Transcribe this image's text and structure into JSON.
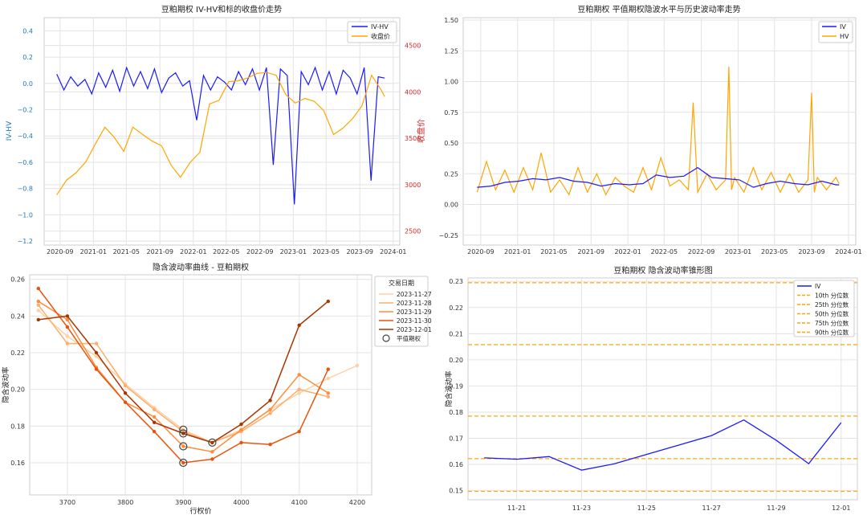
{
  "chart_data": [
    {
      "type": "line",
      "title": "豆粕期权 IV-HV和标的收盘价走势",
      "xlabel": "",
      "ylabel": "IV-HV",
      "y2label": "收盘价",
      "x_ticks": [
        "2020-09",
        "2021-01",
        "2021-05",
        "2021-09",
        "2022-01",
        "2022-05",
        "2022-09",
        "2023-01",
        "2023-05",
        "2023-09",
        "2024-01"
      ],
      "y_ticks": [
        "0.4",
        "0.2",
        "0.0",
        "−0.2",
        "−0.4",
        "−0.6",
        "−0.8",
        "−1.0",
        "−1.2"
      ],
      "y2_ticks": [
        "4500",
        "4000",
        "3500",
        "3000",
        "2500"
      ],
      "ylim": [
        -1.23,
        0.5
      ],
      "y2lim": [
        2350,
        4800
      ],
      "xlim": [
        "2020-07-05",
        "2024-01-25"
      ],
      "grid": true,
      "legend_position": "top-right",
      "series": [
        {
          "name": "IV-HV",
          "color": "#1a1aff",
          "axis": "left",
          "x": [
            "2020-08-20",
            "2020-09-15",
            "2020-10-10",
            "2020-11-05",
            "2020-12-01",
            "2020-12-26",
            "2021-01-20",
            "2021-02-15",
            "2021-03-12",
            "2021-04-07",
            "2021-05-02",
            "2021-05-28",
            "2021-06-22",
            "2021-07-18",
            "2021-08-12",
            "2021-09-07",
            "2021-10-03",
            "2021-10-28",
            "2021-11-23",
            "2021-12-18",
            "2022-01-13",
            "2022-02-07",
            "2022-03-05",
            "2022-03-30",
            "2022-04-25",
            "2022-05-20",
            "2022-06-15",
            "2022-07-10",
            "2022-08-05",
            "2022-08-30",
            "2022-09-25",
            "2022-10-20",
            "2022-11-15",
            "2022-12-10",
            "2023-01-05",
            "2023-01-30",
            "2023-02-25",
            "2023-03-22",
            "2023-04-17",
            "2023-05-12",
            "2023-06-07",
            "2023-07-02",
            "2023-07-28",
            "2023-08-22",
            "2023-09-17",
            "2023-10-12",
            "2023-11-07",
            "2023-12-01"
          ],
          "y": [
            0.07,
            -0.05,
            0.05,
            -0.02,
            0.03,
            -0.08,
            0.08,
            -0.03,
            0.1,
            -0.06,
            0.12,
            -0.02,
            0.09,
            -0.04,
            0.11,
            -0.07,
            0.04,
            0.08,
            -0.02,
            0.02,
            -0.28,
            0.06,
            -0.05,
            0.05,
            0.01,
            -0.05,
            0.09,
            -0.01,
            0.11,
            -0.05,
            0.12,
            -0.62,
            0.11,
            0.06,
            -0.92,
            0.09,
            -0.01,
            0.12,
            -0.05,
            0.09,
            -0.08,
            0.1,
            0.04,
            -0.08,
            0.12,
            -0.74,
            0.05,
            0.04
          ]
        },
        {
          "name": "收盘价",
          "color": "#ffa500",
          "axis": "right",
          "x": [
            "2020-08-20",
            "2020-09-25",
            "2020-10-30",
            "2020-12-05",
            "2021-01-08",
            "2021-02-12",
            "2021-03-18",
            "2021-04-22",
            "2021-05-25",
            "2021-06-30",
            "2021-08-03",
            "2021-09-07",
            "2021-10-12",
            "2021-11-15",
            "2021-12-20",
            "2022-01-25",
            "2022-03-01",
            "2022-04-05",
            "2022-05-10",
            "2022-06-14",
            "2022-07-18",
            "2022-08-22",
            "2022-09-26",
            "2022-10-30",
            "2022-12-05",
            "2023-01-08",
            "2023-02-12",
            "2023-03-18",
            "2023-04-22",
            "2023-05-28",
            "2023-07-01",
            "2023-08-05",
            "2023-09-09",
            "2023-10-14",
            "2023-11-18",
            "2023-12-01"
          ],
          "y": [
            2890,
            3050,
            3130,
            3250,
            3440,
            3620,
            3510,
            3360,
            3620,
            3540,
            3470,
            3420,
            3210,
            3080,
            3240,
            3350,
            3870,
            3910,
            4110,
            4120,
            4150,
            4200,
            4210,
            4180,
            3970,
            3880,
            3930,
            3900,
            3800,
            3540,
            3610,
            3710,
            3850,
            4180,
            4020,
            3950
          ]
        }
      ]
    },
    {
      "type": "line",
      "title": "豆粕期权 平值期权隐波水平与历史波动率走势",
      "xlabel": "",
      "ylabel": "",
      "x_ticks": [
        "2020-09",
        "2021-01",
        "2021-05",
        "2021-09",
        "2022-01",
        "2022-05",
        "2022-09",
        "2023-01",
        "2023-05",
        "2023-09",
        "2024-01"
      ],
      "y_ticks": [
        "1.50",
        "1.25",
        "1.00",
        "0.75",
        "0.50",
        "0.25",
        "0.00",
        "−0.25"
      ],
      "ylim": [
        -0.33,
        1.52
      ],
      "xlim": [
        "2020-07-05",
        "2024-01-25"
      ],
      "grid": true,
      "legend_position": "top-right",
      "series": [
        {
          "name": "IV",
          "color": "#1a1aff",
          "x": [
            "2020-08-20",
            "2020-10-05",
            "2020-11-20",
            "2021-01-05",
            "2021-02-20",
            "2021-04-05",
            "2021-05-20",
            "2021-07-05",
            "2021-08-20",
            "2021-10-05",
            "2021-11-20",
            "2022-01-05",
            "2022-02-20",
            "2022-04-05",
            "2022-05-20",
            "2022-07-05",
            "2022-08-20",
            "2022-10-05",
            "2022-11-20",
            "2023-01-05",
            "2023-02-20",
            "2023-04-05",
            "2023-05-20",
            "2023-07-05",
            "2023-08-20",
            "2023-10-05",
            "2023-11-20",
            "2023-12-01"
          ],
          "y": [
            0.14,
            0.15,
            0.18,
            0.19,
            0.21,
            0.2,
            0.22,
            0.19,
            0.18,
            0.15,
            0.17,
            0.16,
            0.17,
            0.24,
            0.22,
            0.23,
            0.3,
            0.22,
            0.21,
            0.2,
            0.14,
            0.17,
            0.19,
            0.17,
            0.16,
            0.19,
            0.16,
            0.16
          ]
        },
        {
          "name": "HV",
          "color": "#ffa500",
          "x": [
            "2020-08-20",
            "2020-09-20",
            "2020-10-20",
            "2020-11-20",
            "2020-12-20",
            "2021-01-20",
            "2021-02-20",
            "2021-03-20",
            "2021-04-20",
            "2021-05-20",
            "2021-06-20",
            "2021-07-20",
            "2021-08-20",
            "2021-09-20",
            "2021-10-20",
            "2021-11-20",
            "2021-12-20",
            "2022-01-20",
            "2022-02-20",
            "2022-03-20",
            "2022-04-20",
            "2022-05-20",
            "2022-06-20",
            "2022-07-20",
            "2022-08-05",
            "2022-08-20",
            "2022-09-20",
            "2022-10-20",
            "2022-11-20",
            "2022-12-01",
            "2022-12-10",
            "2022-12-20",
            "2023-01-20",
            "2023-02-20",
            "2023-03-20",
            "2023-04-20",
            "2023-05-20",
            "2023-06-20",
            "2023-07-20",
            "2023-08-20",
            "2023-09-01",
            "2023-09-10",
            "2023-09-20",
            "2023-10-20",
            "2023-11-20",
            "2023-12-01"
          ],
          "y": [
            0.1,
            0.35,
            0.12,
            0.28,
            0.1,
            0.3,
            0.12,
            0.42,
            0.1,
            0.2,
            0.08,
            0.3,
            0.1,
            0.25,
            0.08,
            0.22,
            0.15,
            0.1,
            0.3,
            0.12,
            0.38,
            0.15,
            0.2,
            0.12,
            0.83,
            0.1,
            0.25,
            0.12,
            0.2,
            1.12,
            0.12,
            0.22,
            0.1,
            0.3,
            0.12,
            0.26,
            0.1,
            0.25,
            0.1,
            0.2,
            0.91,
            0.1,
            0.22,
            0.12,
            0.22,
            0.17
          ]
        }
      ]
    },
    {
      "type": "line",
      "title": "隐含波动率曲线 - 豆粕期权",
      "xlabel": "行权价",
      "ylabel": "隐含波动率",
      "x_ticks": [
        "3700",
        "3800",
        "3900",
        "4000",
        "4100",
        "4200"
      ],
      "y_ticks": [
        "0.26",
        "0.24",
        "0.22",
        "0.20",
        "0.18",
        "0.16"
      ],
      "ylim": [
        0.1425,
        0.2625
      ],
      "xlim": [
        3635,
        4225
      ],
      "grid": true,
      "legend_title": "交易日期",
      "legend_position": "top-right",
      "atm_label": "平值期权",
      "series": [
        {
          "name": "2023-11-27",
          "color": "#fdd0a2",
          "x": [
            3650,
            3700,
            3750,
            3800,
            3850,
            3900,
            3950,
            4000,
            4050,
            4100,
            4150,
            4200
          ],
          "y": [
            0.243,
            0.229,
            0.218,
            0.203,
            0.19,
            0.178,
            0.171,
            0.178,
            0.189,
            0.198,
            0.206,
            0.213
          ]
        },
        {
          "name": "2023-11-28",
          "color": "#fdae6b",
          "x": [
            3650,
            3700,
            3750,
            3800,
            3850,
            3900,
            3950,
            4000,
            4050,
            4100,
            4150
          ],
          "y": [
            0.246,
            0.225,
            0.225,
            0.202,
            0.189,
            0.177,
            0.171,
            0.177,
            0.187,
            0.2,
            0.196
          ]
        },
        {
          "name": "2023-11-29",
          "color": "#fd8d3c",
          "x": [
            3650,
            3700,
            3750,
            3800,
            3850,
            3900,
            3950,
            4000,
            4050,
            4100,
            4150
          ],
          "y": [
            0.248,
            0.238,
            0.212,
            0.193,
            0.185,
            0.169,
            0.166,
            0.178,
            0.189,
            0.208,
            0.198
          ]
        },
        {
          "name": "2023-11-30",
          "color": "#e6550d",
          "x": [
            3650,
            3700,
            3750,
            3800,
            3850,
            3900,
            3950,
            4000,
            4050,
            4100,
            4150
          ],
          "y": [
            0.255,
            0.234,
            0.211,
            0.193,
            0.177,
            0.16,
            0.162,
            0.171,
            0.17,
            0.177,
            0.211
          ]
        },
        {
          "name": "2023-12-01",
          "color": "#a63603",
          "x": [
            3650,
            3700,
            3750,
            3800,
            3850,
            3900,
            3950,
            4000,
            4050,
            4100,
            4150
          ],
          "y": [
            0.238,
            0.24,
            0.22,
            0.198,
            0.182,
            0.176,
            0.171,
            0.181,
            0.194,
            0.235,
            0.248
          ]
        }
      ],
      "atm_points": [
        {
          "x": 3900,
          "y": 0.178
        },
        {
          "x": 3900,
          "y": 0.176
        },
        {
          "x": 3900,
          "y": 0.169
        },
        {
          "x": 3900,
          "y": 0.16
        },
        {
          "x": 3950,
          "y": 0.171
        }
      ]
    },
    {
      "type": "line",
      "title": "豆粕期权 隐含波动率锥形图",
      "xlabel": "",
      "ylabel": "隐含波动率",
      "x_ticks": [
        "11-21",
        "11-23",
        "11-25",
        "11-27",
        "11-29",
        "12-01"
      ],
      "y_ticks": [
        "0.23",
        "0.22",
        "0.21",
        "0.20",
        "0.19",
        "0.18",
        "0.17",
        "0.16",
        "0.15"
      ],
      "ylim": [
        0.1465,
        0.2313
      ],
      "xlim": [
        "2023-11-19T12:00",
        "2023-12-01T12:00"
      ],
      "grid": true,
      "legend_position": "top-right",
      "series": [
        {
          "name": "IV",
          "color": "#1a1aff",
          "x": [
            "2023-11-20",
            "2023-11-21",
            "2023-11-22",
            "2023-11-23",
            "2023-11-24",
            "2023-11-27",
            "2023-11-28",
            "2023-11-29",
            "2023-11-30",
            "2023-12-01"
          ],
          "y": [
            0.1625,
            0.162,
            0.163,
            0.1578,
            0.1602,
            0.171,
            0.177,
            0.1692,
            0.1603,
            0.176
          ]
        }
      ],
      "percentiles": [
        {
          "name": "10th 分位数",
          "value": 0.1497,
          "color": "#ffa500"
        },
        {
          "name": "25th 分位数",
          "value": 0.1622,
          "color": "#ffa500"
        },
        {
          "name": "50th 分位数",
          "value": 0.1785,
          "color": "#ffa500"
        },
        {
          "name": "75th 分位数",
          "value": 0.2058,
          "color": "#ffa500"
        },
        {
          "name": "90th 分位数",
          "value": 0.2295,
          "color": "#ffa500"
        }
      ]
    }
  ]
}
